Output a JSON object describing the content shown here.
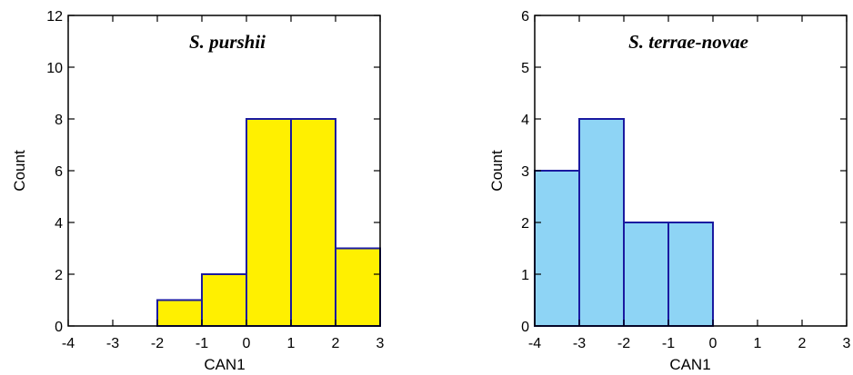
{
  "chart_data": [
    {
      "type": "bar",
      "title": "S. purshii",
      "xlabel": "CAN1",
      "ylabel": "Count",
      "xlim": [
        -4,
        3
      ],
      "ylim": [
        0,
        12
      ],
      "xticks": [
        "-4",
        "-3",
        "-2",
        "-1",
        "0",
        "1",
        "2",
        "3"
      ],
      "yticks": [
        "0",
        "2",
        "4",
        "6",
        "8",
        "10",
        "12"
      ],
      "bins": [
        {
          "x0": -2,
          "x1": -1,
          "count": 1
        },
        {
          "x0": -1,
          "x1": 0,
          "count": 2
        },
        {
          "x0": 0,
          "x1": 1,
          "count": 8
        },
        {
          "x0": 1,
          "x1": 2,
          "count": 8
        },
        {
          "x0": 2,
          "x1": 3,
          "count": 3
        }
      ],
      "fill_color": "#FFF000",
      "edge_color": "#1A1AA0",
      "grid": false
    },
    {
      "type": "bar",
      "title": "S. terrae-novae",
      "xlabel": "CAN1",
      "ylabel": "Count",
      "xlim": [
        -4,
        3
      ],
      "ylim": [
        0,
        6
      ],
      "xticks": [
        "-4",
        "-3",
        "-2",
        "-1",
        "0",
        "1",
        "2",
        "3"
      ],
      "yticks": [
        "0",
        "1",
        "2",
        "3",
        "4",
        "5",
        "6"
      ],
      "bins": [
        {
          "x0": -4,
          "x1": -3,
          "count": 3
        },
        {
          "x0": -3,
          "x1": -2,
          "count": 4
        },
        {
          "x0": -2,
          "x1": -1,
          "count": 2
        },
        {
          "x0": -1,
          "x1": 0,
          "count": 2
        }
      ],
      "fill_color": "#8ED4F5",
      "edge_color": "#1A1AA0",
      "grid": false
    }
  ]
}
